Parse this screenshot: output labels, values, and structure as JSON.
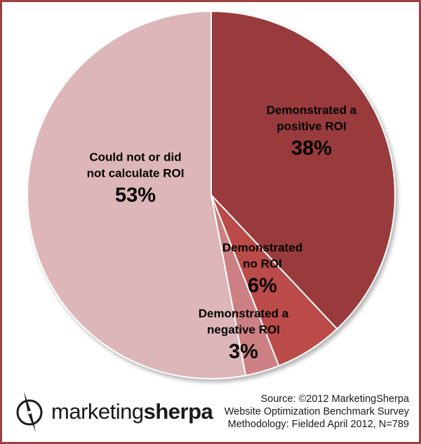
{
  "chart_data": {
    "type": "pie",
    "units": "%",
    "start_angle_deg_from_top_clockwise": 0,
    "slices": [
      {
        "label": "Demonstrated a positive ROI",
        "value": 38,
        "value_label": "38%",
        "color": "#993b3c",
        "label_lines": [
          "Demonstrated a",
          "positive ROI"
        ]
      },
      {
        "label": "Demonstrated no ROI",
        "value": 6,
        "value_label": "6%",
        "color": "#bb4b48",
        "label_lines": [
          "Demonstrated",
          "no ROI"
        ]
      },
      {
        "label": "Demonstrated a negative ROI",
        "value": 3,
        "value_label": "3%",
        "color": "#cc8083",
        "label_lines": [
          "Demonstrated a",
          "negative ROI"
        ]
      },
      {
        "label": "Could not or did not calculate ROI",
        "value": 53,
        "value_label": "53%",
        "color": "#dcb6b8",
        "label_lines": [
          "Could not or did",
          "not calculate ROI"
        ]
      }
    ]
  },
  "footer": {
    "logo": {
      "prefix": "marketing",
      "suffix": "sherpa"
    },
    "source_lines": [
      "Source: ©2012 MarketingSherpa",
      "Website Optimization Benchmark Survey",
      "Methodology: Fielded April 2012, N=789"
    ]
  },
  "frame": {
    "border_color": "#9a4242",
    "background": "#ffffff",
    "label_text_color": "#000000"
  }
}
